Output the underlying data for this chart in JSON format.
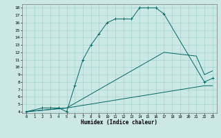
{
  "xlabel": "Humidex (Indice chaleur)",
  "ylabel": "",
  "bg_color": "#cce8e4",
  "line_color": "#006666",
  "grid_color": "#99cccc",
  "xlim": [
    -0.5,
    23.5
  ],
  "ylim": [
    3.8,
    18.5
  ],
  "xticks": [
    0,
    1,
    2,
    3,
    4,
    5,
    6,
    7,
    8,
    9,
    10,
    11,
    12,
    13,
    14,
    15,
    16,
    17,
    18,
    19,
    20,
    21,
    22,
    23
  ],
  "yticks": [
    4,
    5,
    6,
    7,
    8,
    9,
    10,
    11,
    12,
    13,
    14,
    15,
    16,
    17,
    18
  ],
  "line1": {
    "x": [
      0,
      2,
      3,
      4,
      5,
      6,
      7,
      8,
      9,
      10,
      11,
      12,
      13,
      14,
      15,
      16,
      17,
      22,
      23
    ],
    "y": [
      4,
      4.5,
      4.5,
      4.5,
      4,
      7.5,
      11,
      13,
      14.5,
      16,
      16.5,
      16.5,
      16.5,
      18,
      18,
      18,
      17.2,
      8,
      8.5
    ]
  },
  "line2": {
    "x": [
      0,
      5,
      22,
      23
    ],
    "y": [
      4,
      4.5,
      7.5,
      7.5
    ]
  },
  "line3": {
    "x": [
      0,
      5,
      17,
      21,
      22,
      23
    ],
    "y": [
      4,
      4.5,
      12,
      11.5,
      9,
      9.5
    ]
  }
}
